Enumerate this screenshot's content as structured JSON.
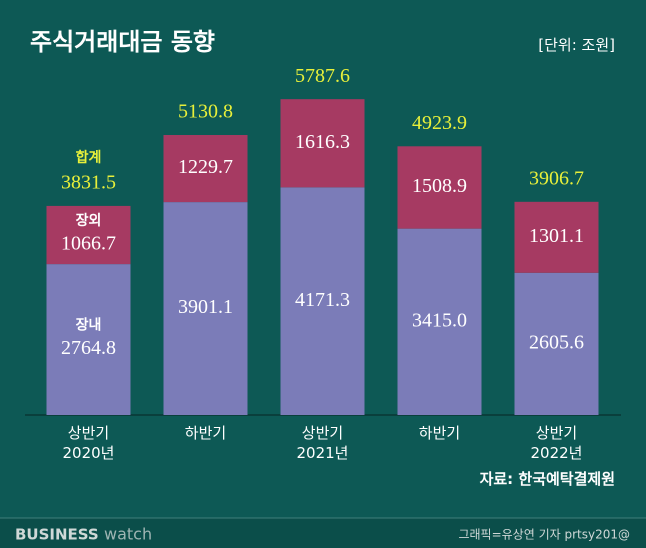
{
  "title": "주식거래대금 동향",
  "unit": "[단위: 조원]",
  "source": "자료: 한국예탁결제원",
  "brand": {
    "first": "BUSINESS",
    "second": "watch"
  },
  "credit": "그래픽=유상연 기자 prtsy201@",
  "chart_data": {
    "type": "stacked-bar",
    "categories": [
      "상반기\n2020년",
      "하반기",
      "상반기\n2021년",
      "하반기",
      "상반기\n2022년"
    ],
    "series": [
      {
        "name": "장내",
        "color": "#7b7cb8",
        "values": [
          2764.8,
          3901.1,
          4171.3,
          3415.0,
          2605.6
        ],
        "value_labels": [
          "2764.8",
          "3901.1",
          "4171.3",
          "3415.0",
          "2605.6"
        ]
      },
      {
        "name": "장외",
        "color": "#a63a62",
        "values": [
          1066.7,
          1229.7,
          1616.3,
          1508.9,
          1301.1
        ],
        "value_labels": [
          "1066.7",
          "1229.7",
          "1616.3",
          "1508.9",
          "1301.1"
        ]
      }
    ],
    "totals": {
      "name": "합계",
      "color": "#e8f03a",
      "values": [
        3831.5,
        5130.8,
        5787.6,
        4923.9,
        3906.7
      ],
      "value_labels": [
        "3831.5",
        "5130.8",
        "5787.6",
        "4923.9",
        "3906.7"
      ]
    },
    "ylim": [
      0,
      7000
    ]
  }
}
